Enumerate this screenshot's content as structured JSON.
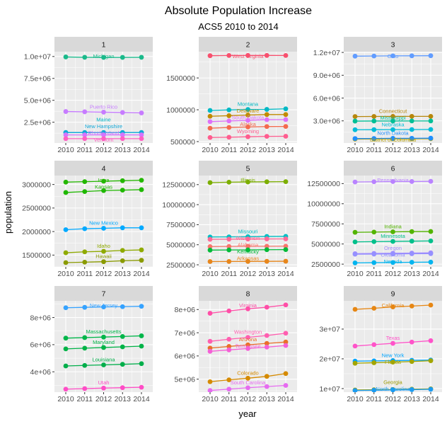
{
  "chart_data": {
    "type": "line",
    "title": "Absolute Population Increase",
    "subtitle": "ACS5 2010 to 2014",
    "xlabel": "year",
    "ylabel": "population",
    "x": [
      2010,
      2011,
      2012,
      2013,
      2014
    ],
    "x_tick_labels": [
      "2010",
      "2011",
      "2012",
      "2013",
      "2014"
    ],
    "grid": true,
    "legend": "none",
    "colors": {
      "panel_bg": "#EBEBEB",
      "strip_bg": "#D9D9D9",
      "grid": "#FFFFFF"
    },
    "facets": [
      {
        "label": "1",
        "ylim": [
          130000,
          10550000
        ],
        "y_ticks": [
          2500000,
          5000000,
          7500000,
          10000000
        ],
        "y_tick_labels": [
          "2.5e+06",
          "5.0e+06",
          "7.5e+06",
          "1.0e+07"
        ],
        "series": [
          {
            "name": "Michigan",
            "color": "#1AB98A",
            "values": [
              9950000,
              9910000,
              9900000,
              9900000,
              9910000
            ]
          },
          {
            "name": "Puerto Rico",
            "color": "#C77CFF",
            "values": [
              3720000,
              3690000,
              3650000,
              3610000,
              3560000
            ]
          },
          {
            "name": "Maine",
            "color": "#00B6C9",
            "values": [
              1328000,
              1328000,
              1329000,
              1329000,
              1330000
            ]
          },
          {
            "name": "New Hampshire",
            "color": "#14A9D8",
            "values": [
              1316000,
              1316000,
              1319000,
              1320000,
              1322000
            ]
          },
          {
            "name": "Rhode Island",
            "color": "#D575FE",
            "values": [
              1052000,
              1051000,
              1051000,
              1052000,
              1054000
            ]
          },
          {
            "name": "Vermont",
            "color": "#FF61C3",
            "values": [
              625000,
              626000,
              626000,
              626000,
              626000
            ]
          }
        ]
      },
      {
        "label": "2",
        "ylim": [
          478000,
          1913000
        ],
        "y_ticks": [
          500000,
          1000000,
          1500000
        ],
        "y_tick_labels": [
          "500000",
          "1000000",
          "1500000"
        ],
        "series": [
          {
            "name": "West Virginia",
            "color": "#F8506E",
            "values": [
              1850000,
              1853000,
              1854000,
              1854000,
              1853000
            ]
          },
          {
            "name": "Montana",
            "color": "#00B8C4",
            "values": [
              990000,
              998000,
              1005000,
              1006000,
              1015000
            ]
          },
          {
            "name": "Delaware",
            "color": "#C08B00",
            "values": [
              898000,
              907000,
              917000,
              925000,
              925000
            ]
          },
          {
            "name": "South Dakota",
            "color": "#DE71F9",
            "values": [
              814000,
              824000,
              833000,
              844000,
              845000
            ]
          },
          {
            "name": "Alaska",
            "color": "#F46A4E",
            "values": [
              710000,
              722000,
              730000,
              737000,
              738000
            ]
          },
          {
            "name": "Wyoming",
            "color": "#FF5D8F",
            "values": [
              564000,
              568000,
              576000,
              582000,
              584000
            ]
          }
        ]
      },
      {
        "label": "3",
        "ylim": [
          90000,
          12100000
        ],
        "y_ticks": [
          3000000,
          6000000,
          9000000,
          12000000
        ],
        "y_tick_labels": [
          "3.0e+06",
          "6.0e+06",
          "9.0e+06",
          "1.2e+07"
        ],
        "series": [
          {
            "name": "Ohio",
            "color": "#619CFF",
            "values": [
              11510000,
              11530000,
              11550000,
              11560000,
              11570000
            ]
          },
          {
            "name": "Connecticut",
            "color": "#B7860B",
            "values": [
              3570000,
              3580000,
              3590000,
              3590000,
              3590000
            ]
          },
          {
            "name": "Mississippi",
            "color": "#00BF96",
            "values": [
              2970000,
              2980000,
              2980000,
              2990000,
              2990000
            ]
          },
          {
            "name": "Nebraska",
            "color": "#00BCD8",
            "values": [
              1830000,
              1840000,
              1850000,
              1860000,
              1870000
            ]
          },
          {
            "name": "District of Columbia",
            "color": "#B79F00",
            "values": [
              600000,
              612000,
              625000,
              640000,
              650000
            ]
          },
          {
            "name": "North Dakota",
            "color": "#1F8FFF",
            "values": [
              675000,
              685000,
              700000,
              710000,
              725000
            ]
          }
        ]
      },
      {
        "label": "4",
        "ylim": [
          1250000,
          3190000
        ],
        "y_ticks": [
          1500000,
          2000000,
          2500000,
          3000000
        ],
        "y_tick_labels": [
          "1500000",
          "2000000",
          "2500000",
          "3000000"
        ],
        "series": [
          {
            "name": "Iowa",
            "color": "#24B700",
            "values": [
              3050000,
              3060000,
              3070000,
              3080000,
              3090000
            ]
          },
          {
            "name": "Kansas",
            "color": "#1FB800",
            "values": [
              2830000,
              2850000,
              2870000,
              2880000,
              2890000
            ]
          },
          {
            "name": "New Mexico",
            "color": "#00A9FF",
            "values": [
              2040000,
              2060000,
              2070000,
              2080000,
              2080000
            ]
          },
          {
            "name": "Idaho",
            "color": "#8FAA00",
            "values": [
              1550000,
              1570000,
              1580000,
              1600000,
              1610000
            ]
          },
          {
            "name": "Hawaii",
            "color": "#8A9A00",
            "values": [
              1340000,
              1350000,
              1360000,
              1380000,
              1390000
            ]
          }
        ]
      },
      {
        "label": "5",
        "ylim": [
          2240000,
          13630000
        ],
        "y_ticks": [
          2500000,
          5000000,
          7500000,
          10000000,
          12500000
        ],
        "y_tick_labels": [
          "2500000",
          "5000000",
          "7500000",
          "10000000",
          "12500000"
        ],
        "series": [
          {
            "name": "Illinois",
            "color": "#7CAE00",
            "values": [
              12750000,
              12800000,
              12830000,
              12850000,
              12870000
            ]
          },
          {
            "name": "Missouri",
            "color": "#00BFC4",
            "values": [
              5970000,
              5980000,
              6000000,
              6030000,
              6040000
            ]
          },
          {
            "name": "Wisconsin",
            "color": "#FF6A98",
            "values": [
              5670000,
              5690000,
              5710000,
              5720000,
              5730000
            ]
          },
          {
            "name": "Alabama",
            "color": "#F8766D",
            "values": [
              4770000,
              4790000,
              4800000,
              4810000,
              4820000
            ]
          },
          {
            "name": "Kentucky",
            "color": "#00BA38",
            "values": [
              4330000,
              4350000,
              4360000,
              4380000,
              4390000
            ]
          },
          {
            "name": "Arkansas",
            "color": "#E7861B",
            "values": [
              2900000,
              2910000,
              2920000,
              2930000,
              2940000
            ]
          }
        ]
      },
      {
        "label": "6",
        "ylim": [
          2160000,
          13500000
        ],
        "y_ticks": [
          2500000,
          5000000,
          7500000,
          10000000,
          12500000
        ],
        "y_tick_labels": [
          "2500000",
          "5000000",
          "7500000",
          "10000000",
          "12500000"
        ],
        "series": [
          {
            "name": "Pennsylvania",
            "color": "#B983FF",
            "values": [
              12700000,
              12730000,
              12750000,
              12760000,
              12780000
            ]
          },
          {
            "name": "Indiana",
            "color": "#53B400",
            "values": [
              6450000,
              6480000,
              6510000,
              6540000,
              6550000
            ]
          },
          {
            "name": "Minnesota",
            "color": "#00C08B",
            "values": [
              5260000,
              5290000,
              5320000,
              5350000,
              5380000
            ]
          },
          {
            "name": "Oregon",
            "color": "#A58AFF",
            "values": [
              3800000,
              3830000,
              3850000,
              3870000,
              3900000
            ]
          },
          {
            "name": "Oklahoma",
            "color": "#9590FF",
            "values": [
              3730000,
              3750000,
              3770000,
              3790000,
              3800000
            ]
          },
          {
            "name": "Nevada",
            "color": "#00B4EF",
            "values": [
              2650000,
              2680000,
              2700000,
              2730000,
              2750000
            ]
          }
        ]
      },
      {
        "label": "7",
        "ylim": [
          2500000,
          9230000
        ],
        "y_ticks": [
          4000000,
          6000000,
          8000000
        ],
        "y_tick_labels": [
          "4e+06",
          "6e+06",
          "8e+06"
        ],
        "series": [
          {
            "name": "New Jersey",
            "color": "#35A2FF",
            "values": [
              8720000,
              8750000,
              8780000,
              8800000,
              8830000
            ]
          },
          {
            "name": "Massachusetts",
            "color": "#00B64A",
            "values": [
              6480000,
              6520000,
              6560000,
              6600000,
              6650000
            ]
          },
          {
            "name": "Maryland",
            "color": "#00B347",
            "values": [
              5690000,
              5740000,
              5790000,
              5840000,
              5890000
            ]
          },
          {
            "name": "Louisiana",
            "color": "#00AE4A",
            "values": [
              4430000,
              4470000,
              4510000,
              4550000,
              4600000
            ]
          },
          {
            "name": "Utah",
            "color": "#FF4DC6",
            "values": [
              2720000,
              2760000,
              2800000,
              2830000,
              2860000
            ]
          }
        ]
      },
      {
        "label": "8",
        "ylim": [
          4440000,
          8375000
        ],
        "y_ticks": [
          5000000,
          6000000,
          7000000,
          8000000
        ],
        "y_tick_labels": [
          "5e+06",
          "6e+06",
          "7e+06",
          "8e+06"
        ],
        "series": [
          {
            "name": "Virginia",
            "color": "#FF4EA7",
            "values": [
              7840000,
              7940000,
              8030000,
              8100000,
              8200000
            ]
          },
          {
            "name": "Washington",
            "color": "#FF5FB0",
            "values": [
              6630000,
              6720000,
              6800000,
              6880000,
              6980000
            ]
          },
          {
            "name": "Arizona",
            "color": "#E9702A",
            "values": [
              6340000,
              6410000,
              6480000,
              6540000,
              6600000
            ]
          },
          {
            "name": "Tennessee",
            "color": "#F560D6",
            "values": [
              6200000,
              6260000,
              6320000,
              6380000,
              6450000
            ]
          },
          {
            "name": "Colorado",
            "color": "#D58A00",
            "values": [
              4890000,
              4970000,
              5040000,
              5120000,
              5240000
            ]
          },
          {
            "name": "South Carolina",
            "color": "#E66BF0",
            "values": [
              4510000,
              4570000,
              4630000,
              4680000,
              4730000
            ]
          }
        ]
      },
      {
        "label": "9",
        "ylim": [
          8800000,
          39500000
        ],
        "y_ticks": [
          10000000,
          20000000,
          30000000
        ],
        "y_tick_labels": [
          "1e+07",
          "2e+07",
          "3e+07"
        ],
        "series": [
          {
            "name": "California",
            "color": "#E68613",
            "values": [
              36640000,
              37000000,
              37450000,
              37750000,
              38070000
            ]
          },
          {
            "name": "Texas",
            "color": "#FF53C9",
            "values": [
              24300000,
              24780000,
              25210000,
              25640000,
              26100000
            ]
          },
          {
            "name": "New York",
            "color": "#00A5FF",
            "values": [
              19230000,
              19300000,
              19400000,
              19490000,
              19590000
            ]
          },
          {
            "name": "Florida",
            "color": "#A3A500",
            "values": [
              18510000,
              18690000,
              18880000,
              19090000,
              19360000
            ]
          },
          {
            "name": "Georgia",
            "color": "#9C9A00",
            "values": [
              9510000,
              9600000,
              9700000,
              9800000,
              9900000
            ]
          },
          {
            "name": "North Carolina",
            "color": "#1B9CF2",
            "values": [
              9340000,
              9440000,
              9540000,
              9650000,
              9750000
            ]
          }
        ]
      }
    ]
  }
}
